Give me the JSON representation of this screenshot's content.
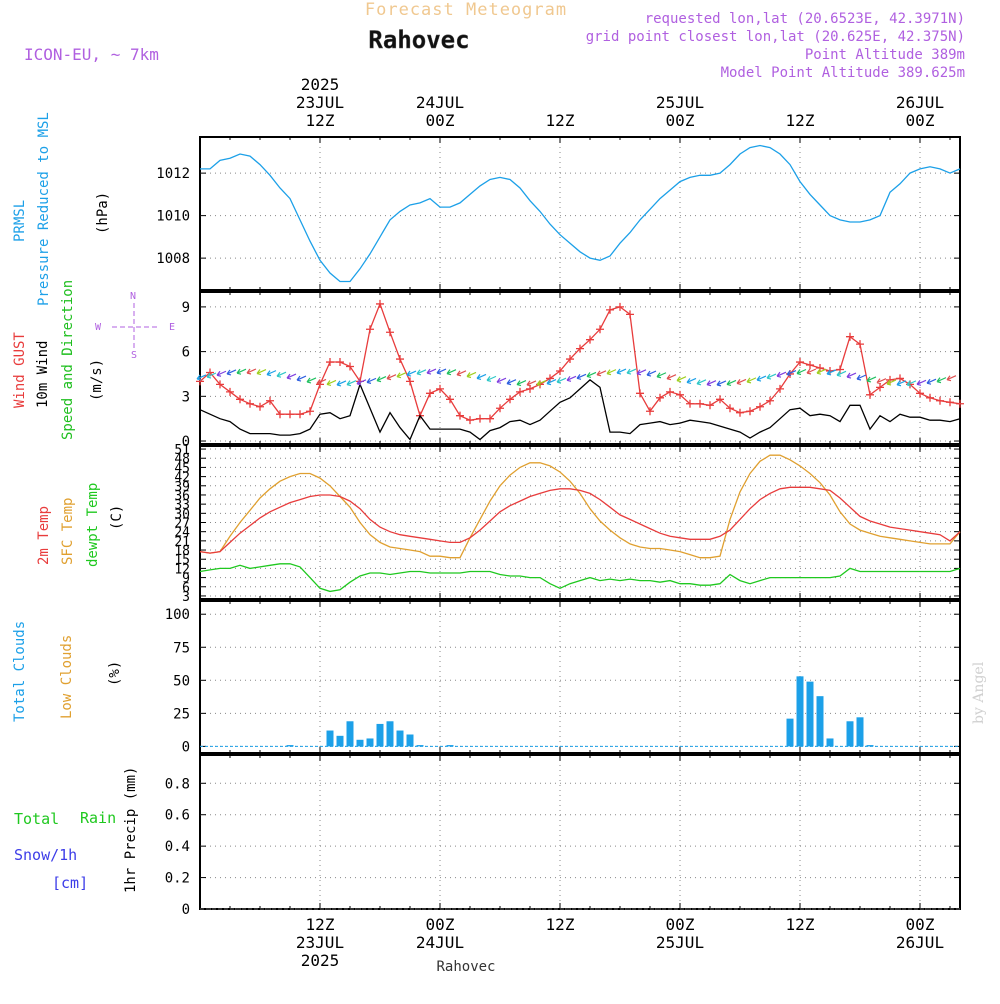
{
  "header": {
    "title": "Forecast Meteogram",
    "location": "Rahovec",
    "model": "ICON-EU, ~ 7km",
    "requested": "requested lon,lat (20.6523E, 42.3971N)",
    "grid_point": "grid point closest lon,lat (20.625E, 42.375N)",
    "point_altitude": "Point Altitude 389m",
    "model_altitude": "Model Point Altitude 389.625m",
    "footer_location": "Rahovec",
    "watermark": "by Angel"
  },
  "colors": {
    "pressure": "#1ca0e8",
    "gust": "#e83c3c",
    "wind": "#000000",
    "wind_label": "#1fbf1f",
    "temp": "#e83c3c",
    "sfc": "#e0a030",
    "dewpt": "#1fc81f",
    "clouds": "#1ca0e8",
    "low_clouds": "#e0a030",
    "rain": "#1fc81f",
    "snow": "#3c3ce8",
    "purple": "#b060e0",
    "title": "#f0c890"
  },
  "time_axis": {
    "top_labels": [
      {
        "h": 12,
        "lines": [
          "2025",
          "23JUL",
          "12Z"
        ]
      },
      {
        "h": 24,
        "lines": [
          "24JUL",
          "00Z"
        ]
      },
      {
        "h": 36,
        "lines": [
          "12Z"
        ]
      },
      {
        "h": 48,
        "lines": [
          "25JUL",
          "00Z"
        ]
      },
      {
        "h": 60,
        "lines": [
          "12Z"
        ]
      },
      {
        "h": 72,
        "lines": [
          "26JUL",
          "00Z"
        ]
      }
    ],
    "bottom_labels": [
      {
        "h": 12,
        "lines": [
          "12Z",
          "23JUL",
          "2025"
        ]
      },
      {
        "h": 24,
        "lines": [
          "00Z",
          "24JUL"
        ]
      },
      {
        "h": 36,
        "lines": [
          "12Z"
        ]
      },
      {
        "h": 48,
        "lines": [
          "00Z",
          "25JUL"
        ]
      },
      {
        "h": 60,
        "lines": [
          "12Z"
        ]
      },
      {
        "h": 72,
        "lines": [
          "00Z",
          "26JUL"
        ]
      }
    ]
  },
  "panel_labels": {
    "pressure": [
      "PRMSL",
      "Pressure Reduced to MSL",
      "(hPa)"
    ],
    "wind": [
      "Wind GUST",
      "10m Wind",
      "Speed and Direction",
      "(m/s)"
    ],
    "compass": [
      "N",
      "W",
      "E",
      "S"
    ],
    "temp": [
      "2m Temp",
      "SFC Temp",
      "dewpt Temp",
      "(C)"
    ],
    "clouds": [
      "Total Clouds",
      "Low Clouds",
      "(%)"
    ],
    "precip": [
      "Total",
      "Rain",
      "Snow/1h",
      "[cm]",
      "1hr Precip (mm)"
    ]
  },
  "chart_data": [
    {
      "type": "line",
      "panel": "pressure",
      "ylabel": "(hPa)",
      "ylim": [
        1006.5,
        1013.7
      ],
      "yticks": [
        "1008",
        "1010",
        "1012"
      ],
      "x_hours": [
        0,
        1,
        2,
        3,
        4,
        5,
        6,
        7,
        8,
        9,
        10,
        11,
        12,
        13,
        14,
        15,
        16,
        17,
        18,
        19,
        20,
        21,
        22,
        23,
        24,
        25,
        26,
        27,
        28,
        29,
        30,
        31,
        32,
        33,
        34,
        35,
        36,
        37,
        38,
        39,
        40,
        41,
        42,
        43,
        44,
        45,
        46,
        47,
        48,
        49,
        50,
        51,
        52,
        53,
        54,
        55,
        56,
        57,
        58,
        59,
        60,
        61,
        62,
        63,
        64,
        65,
        66,
        67,
        68,
        69,
        70,
        71,
        72,
        73,
        74,
        75,
        76
      ],
      "series": [
        {
          "name": "PRMSL",
          "values": [
            1012.2,
            1012.2,
            1012.6,
            1012.7,
            1012.9,
            1012.8,
            1012.4,
            1011.9,
            1011.3,
            1010.8,
            1009.8,
            1008.8,
            1007.9,
            1007.3,
            1006.9,
            1006.9,
            1007.5,
            1008.2,
            1009.0,
            1009.8,
            1010.2,
            1010.5,
            1010.6,
            1010.8,
            1010.4,
            1010.4,
            1010.6,
            1011.0,
            1011.4,
            1011.7,
            1011.8,
            1011.7,
            1011.3,
            1010.7,
            1010.2,
            1009.6,
            1009.1,
            1008.7,
            1008.3,
            1008.0,
            1007.9,
            1008.1,
            1008.7,
            1009.2,
            1009.8,
            1010.3,
            1010.8,
            1011.2,
            1011.6,
            1011.8,
            1011.9,
            1011.9,
            1012.0,
            1012.4,
            1012.9,
            1013.2,
            1013.3,
            1013.2,
            1012.9,
            1012.4,
            1011.6,
            1011.0,
            1010.5,
            1010.0,
            1009.8,
            1009.7,
            1009.7,
            1009.8,
            1010.0,
            1011.1,
            1011.5,
            1012.0,
            1012.2,
            1012.3,
            1012.2,
            1012.0,
            1012.2
          ]
        }
      ]
    },
    {
      "type": "line",
      "panel": "wind",
      "ylabel": "(m/s)",
      "ylim": [
        -0.2,
        10
      ],
      "yticks": [
        "0",
        "3",
        "6",
        "9"
      ],
      "x_hours": [
        0,
        1,
        2,
        3,
        4,
        5,
        6,
        7,
        8,
        9,
        10,
        11,
        12,
        13,
        14,
        15,
        16,
        17,
        18,
        19,
        20,
        21,
        22,
        23,
        24,
        25,
        26,
        27,
        28,
        29,
        30,
        31,
        32,
        33,
        34,
        35,
        36,
        37,
        38,
        39,
        40,
        41,
        42,
        43,
        44,
        45,
        46,
        47,
        48,
        49,
        50,
        51,
        52,
        53,
        54,
        55,
        56,
        57,
        58,
        59,
        60,
        61,
        62,
        63,
        64,
        65,
        66,
        67,
        68,
        69,
        70,
        71,
        72,
        73,
        74,
        75,
        76
      ],
      "series": [
        {
          "name": "Wind GUST",
          "values": [
            4.0,
            4.6,
            3.8,
            3.3,
            2.8,
            2.5,
            2.3,
            2.7,
            1.8,
            1.8,
            1.8,
            2.0,
            3.8,
            5.3,
            5.3,
            5.0,
            4.0,
            7.5,
            9.2,
            7.3,
            5.5,
            4.0,
            1.7,
            3.2,
            3.5,
            2.8,
            1.7,
            1.4,
            1.5,
            1.5,
            2.2,
            2.8,
            3.3,
            3.5,
            3.8,
            4.2,
            4.7,
            5.5,
            6.2,
            6.8,
            7.5,
            8.8,
            9.0,
            8.5,
            3.2,
            2.0,
            2.9,
            3.3,
            3.1,
            2.5,
            2.5,
            2.4,
            2.8,
            2.2,
            1.9,
            2.0,
            2.3,
            2.7,
            3.5,
            4.5,
            5.3,
            5.1,
            4.9,
            4.7,
            4.8,
            7.0,
            6.5,
            3.1,
            3.6,
            4.1,
            4.2,
            3.8,
            3.2,
            2.9,
            2.7,
            2.6,
            2.5
          ]
        },
        {
          "name": "10m Wind",
          "values": [
            2.1,
            1.8,
            1.5,
            1.3,
            0.8,
            0.5,
            0.5,
            0.5,
            0.4,
            0.4,
            0.5,
            0.8,
            1.8,
            1.9,
            1.5,
            1.7,
            3.8,
            2.2,
            0.6,
            1.9,
            0.9,
            0.1,
            1.7,
            0.8,
            0.8,
            0.8,
            0.8,
            0.6,
            0.1,
            0.7,
            0.9,
            1.3,
            1.4,
            1.1,
            1.4,
            2.0,
            2.6,
            2.9,
            3.5,
            4.1,
            3.6,
            0.6,
            0.6,
            0.5,
            1.1,
            1.2,
            1.3,
            1.1,
            1.2,
            1.4,
            1.3,
            1.2,
            1.0,
            0.8,
            0.6,
            0.2,
            0.6,
            0.9,
            1.5,
            2.1,
            2.2,
            1.7,
            1.8,
            1.7,
            1.3,
            2.4,
            2.4,
            0.8,
            1.7,
            1.3,
            1.8,
            1.6,
            1.6,
            1.4,
            1.4,
            1.3,
            1.5
          ]
        }
      ]
    },
    {
      "type": "line",
      "panel": "temperature",
      "ylabel": "(C)",
      "ylim": [
        2,
        52
      ],
      "yticks": [
        "3",
        "6",
        "9",
        "12",
        "15",
        "18",
        "21",
        "24",
        "27",
        "30",
        "33",
        "36",
        "39",
        "42",
        "45",
        "48",
        "51"
      ],
      "x_hours": [
        0,
        1,
        2,
        3,
        4,
        5,
        6,
        7,
        8,
        9,
        10,
        11,
        12,
        13,
        14,
        15,
        16,
        17,
        18,
        19,
        20,
        21,
        22,
        23,
        24,
        25,
        26,
        27,
        28,
        29,
        30,
        31,
        32,
        33,
        34,
        35,
        36,
        37,
        38,
        39,
        40,
        41,
        42,
        43,
        44,
        45,
        46,
        47,
        48,
        49,
        50,
        51,
        52,
        53,
        54,
        55,
        56,
        57,
        58,
        59,
        60,
        61,
        62,
        63,
        64,
        65,
        66,
        67,
        68,
        69,
        70,
        71,
        72,
        73,
        74,
        75,
        76
      ],
      "series": [
        {
          "name": "2m Temp",
          "values": [
            17.5,
            17.0,
            17.5,
            20.5,
            23.5,
            26.0,
            28.5,
            30.5,
            32.0,
            33.5,
            34.5,
            35.5,
            36.0,
            36.0,
            35.5,
            34.0,
            31.5,
            28.0,
            25.5,
            24.0,
            23.0,
            22.5,
            22.0,
            21.5,
            21.0,
            20.5,
            20.5,
            22.0,
            24.5,
            27.5,
            30.5,
            32.5,
            34.0,
            35.5,
            36.5,
            37.5,
            38.0,
            38.0,
            37.5,
            36.5,
            34.5,
            32.0,
            29.5,
            28.0,
            26.5,
            25.0,
            23.5,
            22.5,
            22.0,
            21.5,
            21.5,
            21.5,
            22.5,
            24.5,
            28.0,
            31.5,
            34.5,
            36.5,
            38.0,
            38.5,
            38.5,
            38.5,
            38.0,
            37.5,
            35.0,
            32.0,
            29.0,
            27.5,
            26.5,
            25.5,
            25.0,
            24.5,
            24.0,
            23.5,
            23.0,
            21.0,
            24.0
          ]
        },
        {
          "name": "SFC Temp",
          "values": [
            17.5,
            17.0,
            17.5,
            22.5,
            27.0,
            31.0,
            35.0,
            38.0,
            40.5,
            42.0,
            43.0,
            43.0,
            41.5,
            39.0,
            35.5,
            32.0,
            27.0,
            23.0,
            20.5,
            19.0,
            18.5,
            18.0,
            17.5,
            16.0,
            16.0,
            15.5,
            15.5,
            22.0,
            28.0,
            34.0,
            39.0,
            42.5,
            45.0,
            46.5,
            46.5,
            45.5,
            43.5,
            40.5,
            36.5,
            31.5,
            27.5,
            24.5,
            22.0,
            20.0,
            19.0,
            18.5,
            18.5,
            18.0,
            17.5,
            16.5,
            15.5,
            15.5,
            16.0,
            28.0,
            37.0,
            43.0,
            47.0,
            49.0,
            49.0,
            47.5,
            45.5,
            43.0,
            40.0,
            36.0,
            30.5,
            26.5,
            24.5,
            23.5,
            22.5,
            22.0,
            21.5,
            21.0,
            20.5,
            20.0,
            20.0,
            20.0,
            24.0
          ]
        },
        {
          "name": "dewpt Temp",
          "values": [
            11.0,
            11.5,
            12.0,
            12.0,
            13.0,
            12.0,
            12.5,
            13.0,
            13.5,
            13.5,
            12.5,
            9.0,
            5.5,
            4.5,
            5.0,
            7.5,
            9.5,
            10.5,
            10.5,
            10.0,
            10.5,
            11.0,
            11.0,
            10.5,
            10.5,
            10.5,
            10.5,
            11.0,
            11.0,
            11.0,
            10.0,
            9.5,
            9.5,
            9.0,
            9.0,
            7.0,
            5.5,
            7.0,
            8.0,
            9.0,
            8.0,
            8.5,
            8.0,
            8.5,
            8.0,
            8.0,
            7.5,
            8.0,
            7.0,
            7.0,
            6.5,
            6.5,
            7.0,
            10.0,
            8.0,
            7.0,
            8.0,
            9.0,
            9.0,
            9.0,
            9.0,
            9.0,
            9.0,
            9.0,
            9.5,
            12.0,
            11.0,
            11.0,
            11.0,
            11.0,
            11.0,
            11.0,
            11.0,
            11.0,
            11.0,
            11.0,
            12.0
          ]
        }
      ]
    },
    {
      "type": "bar",
      "panel": "clouds",
      "ylabel": "(%)",
      "ylim": [
        -5,
        110
      ],
      "yticks": [
        "0",
        "25",
        "50",
        "75",
        "100"
      ],
      "x_hours": [
        0,
        1,
        2,
        3,
        4,
        5,
        6,
        7,
        8,
        9,
        10,
        11,
        12,
        13,
        14,
        15,
        16,
        17,
        18,
        19,
        20,
        21,
        22,
        23,
        24,
        25,
        26,
        27,
        28,
        29,
        30,
        31,
        32,
        33,
        34,
        35,
        36,
        37,
        38,
        39,
        40,
        41,
        42,
        43,
        44,
        45,
        46,
        47,
        48,
        49,
        50,
        51,
        52,
        53,
        54,
        55,
        56,
        57,
        58,
        59,
        60,
        61,
        62,
        63,
        64,
        65,
        66,
        67,
        68,
        69,
        70,
        71,
        72,
        73,
        74,
        75,
        76
      ],
      "series": [
        {
          "name": "Total Clouds",
          "values": [
            0,
            0,
            0,
            0,
            0,
            0,
            0,
            0,
            0,
            1,
            0,
            0,
            0,
            12,
            8,
            19,
            5,
            6,
            17,
            19,
            12,
            9,
            1,
            0,
            0,
            1,
            0,
            0,
            0,
            0,
            0,
            0,
            0,
            0,
            0,
            0,
            0,
            0,
            0,
            0,
            0,
            0,
            0,
            0,
            0,
            0,
            0,
            0,
            0,
            0,
            0,
            0,
            0,
            0,
            0,
            0,
            0,
            0,
            0,
            21,
            53,
            49,
            38,
            6,
            0,
            19,
            22,
            1,
            0,
            0,
            0,
            0,
            0,
            0,
            0,
            0,
            0
          ]
        }
      ]
    },
    {
      "type": "bar",
      "panel": "precipitation",
      "ylabel": "1hr Precip (mm)",
      "ylim": [
        0,
        0.98
      ],
      "yticks": [
        "0",
        "0.2",
        "0.4",
        "0.6",
        "0.8"
      ],
      "x_hours": [
        0,
        76
      ],
      "series": [
        {
          "name": "Total Rain",
          "values": [
            0,
            0
          ]
        }
      ]
    }
  ]
}
